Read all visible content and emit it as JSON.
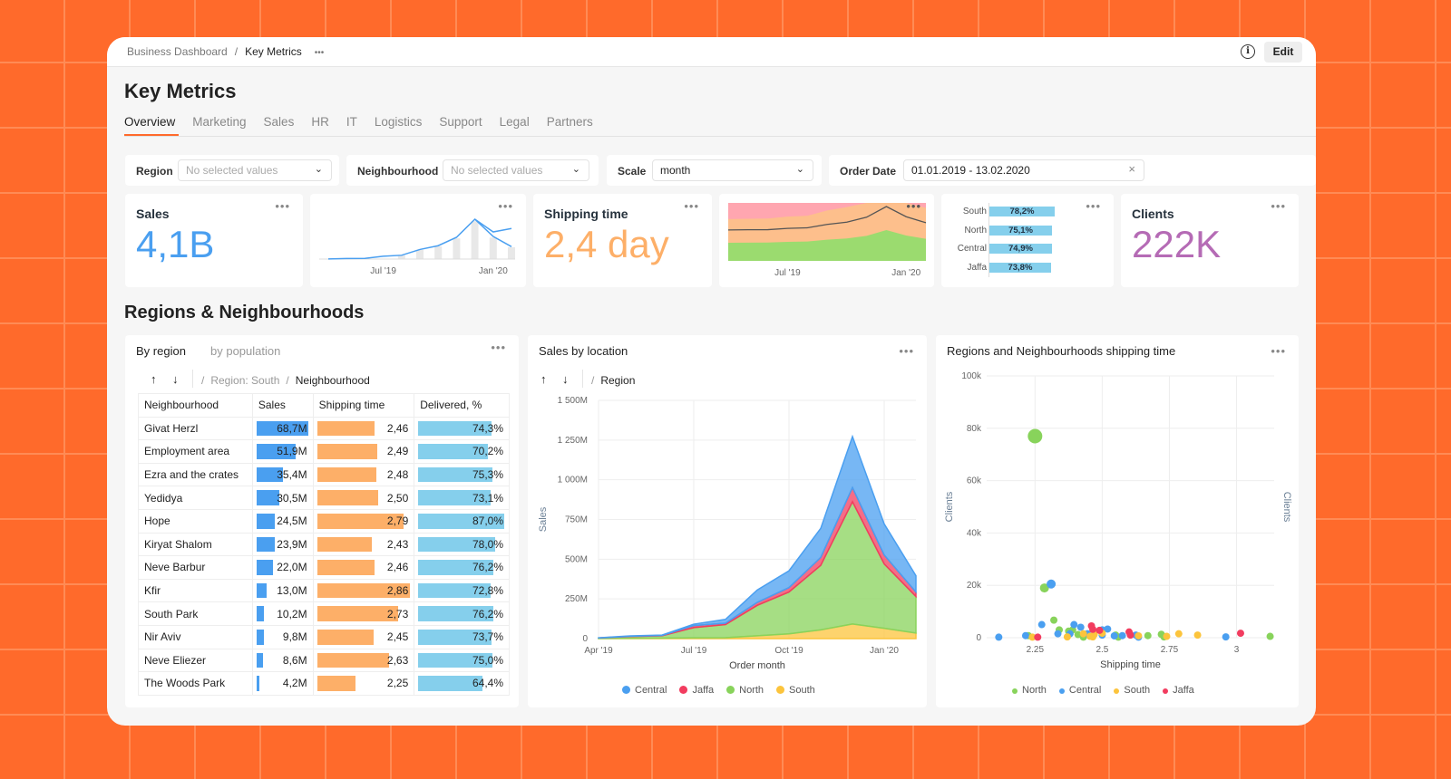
{
  "breadcrumb": {
    "parent": "Business Dashboard",
    "separator": "/",
    "current": "Key Metrics",
    "more": "•••"
  },
  "header": {
    "info_icon": "info-icon",
    "edit_label": "Edit"
  },
  "page_title": "Key Metrics",
  "tabs": [
    {
      "label": "Overview",
      "active": true
    },
    {
      "label": "Marketing"
    },
    {
      "label": "Sales"
    },
    {
      "label": "HR"
    },
    {
      "label": "IT"
    },
    {
      "label": "Logistics"
    },
    {
      "label": "Support"
    },
    {
      "label": "Legal"
    },
    {
      "label": "Partners"
    }
  ],
  "filters": {
    "region": {
      "label": "Region",
      "placeholder": "No selected values"
    },
    "neighbourhood": {
      "label": "Neighbourhood",
      "placeholder": "No selected values"
    },
    "scale": {
      "label": "Scale",
      "value": "month"
    },
    "order_date": {
      "label": "Order Date",
      "value": "01.01.2019 - 13.02.2020"
    }
  },
  "colors": {
    "accent": "#ff6a2b",
    "sales": "#4a9ff0",
    "shipping": "#fdaf68",
    "delivered": "#85cfec",
    "clients": "#b56bb5",
    "central": "#4a9ff0",
    "jaffa": "#f23c5f",
    "north": "#88d35b",
    "south": "#fcc43c"
  },
  "kpis": {
    "sales": {
      "title": "Sales",
      "value": "4,1B"
    },
    "sales_spark": {
      "x_ticks": [
        "Jul '19",
        "Jan '20"
      ]
    },
    "shipping": {
      "title": "Shipping time",
      "value": "2,4 day"
    },
    "shipping_mini": {
      "x_ticks": [
        "Jul '19",
        "Jan '20"
      ]
    },
    "delivered": {
      "rows": [
        {
          "label": "South",
          "value": "78,2%",
          "pct": 78.2
        },
        {
          "label": "North",
          "value": "75,1%",
          "pct": 75.1
        },
        {
          "label": "Central",
          "value": "74,9%",
          "pct": 74.9
        },
        {
          "label": "Jaffa",
          "value": "73,8%",
          "pct": 73.8
        }
      ]
    },
    "clients": {
      "title": "Clients",
      "value": "222K"
    },
    "more": "•••"
  },
  "section_title": "Regions & Neighbourhoods",
  "table_panel": {
    "tabs": [
      "By region",
      "by population"
    ],
    "up": "↑",
    "down": "↓",
    "path": [
      "/",
      "Region: South",
      "/",
      "Neighbourhood"
    ],
    "columns": [
      "Neighbourhood",
      "Sales",
      "Shipping time",
      "Delivered, %"
    ],
    "rows": [
      [
        "Givat Herzl",
        "68,7M",
        68.7,
        "2,46",
        2.46,
        "74,3%",
        74.3
      ],
      [
        "Employment area",
        "51,9M",
        51.9,
        "2,49",
        2.49,
        "70,2%",
        70.2
      ],
      [
        "Ezra and the crates",
        "35,4M",
        35.4,
        "2,48",
        2.48,
        "75,3%",
        75.3
      ],
      [
        "Yedidya",
        "30,5M",
        30.5,
        "2,50",
        2.5,
        "73,1%",
        73.1
      ],
      [
        "Hope",
        "24,5M",
        24.5,
        "2,79",
        2.79,
        "87,0%",
        87.0
      ],
      [
        "Kiryat Shalom",
        "23,9M",
        23.9,
        "2,43",
        2.43,
        "78,0%",
        78.0
      ],
      [
        "Neve Barbur",
        "22,0M",
        22.0,
        "2,46",
        2.46,
        "76,2%",
        76.2
      ],
      [
        "Kfir",
        "13,0M",
        13.0,
        "2,86",
        2.86,
        "72,8%",
        72.8
      ],
      [
        "South Park",
        "10,2M",
        10.2,
        "2,73",
        2.73,
        "76,2%",
        76.2
      ],
      [
        "Nir Aviv",
        "9,8M",
        9.8,
        "2,45",
        2.45,
        "73,7%",
        73.7
      ],
      [
        "Neve Eliezer",
        "8,6M",
        8.6,
        "2,63",
        2.63,
        "75,0%",
        75.0
      ],
      [
        "The Woods Park",
        "4,2M",
        4.2,
        "2,25",
        2.25,
        "64,4%",
        64.4
      ]
    ]
  },
  "chart_data": [
    {
      "type": "area",
      "stacked": true,
      "title": "Sales by location",
      "breadcrumb": [
        "/",
        "Region"
      ],
      "xlabel": "Order month",
      "ylabel": "Sales",
      "categories": [
        "Apr '19",
        "May '19",
        "Jun '19",
        "Jul '19",
        "Aug '19",
        "Sep '19",
        "Oct '19",
        "Nov '19",
        "Dec '19",
        "Jan '20",
        "Feb '20"
      ],
      "x_ticks": [
        "Apr '19",
        "Jul '19",
        "Oct '19",
        "Jan '20"
      ],
      "y_ticks": [
        "0",
        "250M",
        "500M",
        "750M",
        "1 000M",
        "1 250M",
        "1 500M"
      ],
      "ylim": [
        0,
        1500
      ],
      "grid": true,
      "legend": "bottom",
      "series": [
        {
          "name": "South",
          "values": [
            1,
            2,
            3,
            5,
            6,
            18,
            30,
            55,
            92,
            65,
            35
          ]
        },
        {
          "name": "North",
          "values": [
            3,
            11,
            15,
            64,
            82,
            191,
            263,
            406,
            770,
            405,
            230
          ]
        },
        {
          "name": "Jaffa",
          "values": [
            0,
            2,
            2,
            13,
            9,
            19,
            28,
            50,
            89,
            56,
            28
          ]
        },
        {
          "name": "Central",
          "values": [
            1,
            2,
            2,
            9,
            24,
            78,
            106,
            183,
            321,
            196,
            103
          ]
        }
      ],
      "legend_order": [
        "Central",
        "Jaffa",
        "North",
        "South"
      ]
    },
    {
      "type": "scatter",
      "title": "Regions and Neighbourhoods shipping time",
      "xlabel": "Shipping time",
      "ylabel": "Clients",
      "ylabel_right": "Clients",
      "x_ticks": [
        "2.25",
        "2.5",
        "2.75",
        "3"
      ],
      "y_ticks": [
        "0",
        "20k",
        "40k",
        "60k",
        "80k",
        "100k"
      ],
      "xlim": [
        2.07,
        3.14
      ],
      "ylim": [
        0,
        100
      ],
      "grid": true,
      "legend": "bottom",
      "legend_order": [
        "North",
        "Central",
        "South",
        "Jaffa"
      ],
      "series": [
        {
          "name": "North",
          "points": [
            [
              2.25,
              77
            ],
            [
              2.285,
              19
            ],
            [
              2.32,
              6.7
            ],
            [
              2.34,
              3
            ],
            [
              2.225,
              0.8
            ],
            [
              2.375,
              2.5
            ],
            [
              2.39,
              3
            ],
            [
              2.41,
              1.2
            ],
            [
              2.43,
              0.2
            ],
            [
              2.55,
              1
            ],
            [
              2.56,
              0.2
            ],
            [
              2.67,
              0.8
            ],
            [
              2.72,
              1.3
            ],
            [
              2.73,
              0.3
            ],
            [
              3.125,
              0.5
            ]
          ]
        },
        {
          "name": "Central",
          "points": [
            [
              2.115,
              0.2
            ],
            [
              2.215,
              0.8
            ],
            [
              2.275,
              5
            ],
            [
              2.31,
              20.5
            ],
            [
              2.335,
              1.5
            ],
            [
              2.38,
              1.5
            ],
            [
              2.395,
              5
            ],
            [
              2.42,
              4
            ],
            [
              2.445,
              1.5
            ],
            [
              2.5,
              3
            ],
            [
              2.5,
              1
            ],
            [
              2.52,
              3.3
            ],
            [
              2.545,
              0.7
            ],
            [
              2.575,
              0.8
            ],
            [
              2.625,
              1
            ],
            [
              2.635,
              0.2
            ],
            [
              2.96,
              0.3
            ]
          ]
        },
        {
          "name": "South",
          "points": [
            [
              2.24,
              0.2
            ],
            [
              2.37,
              0.3
            ],
            [
              2.43,
              1.5
            ],
            [
              2.455,
              0.5
            ],
            [
              2.465,
              0.3
            ],
            [
              2.47,
              1.2
            ],
            [
              2.5,
              1.7
            ],
            [
              2.635,
              0.7
            ],
            [
              2.74,
              0.5
            ],
            [
              2.785,
              1.5
            ],
            [
              2.855,
              1
            ]
          ]
        },
        {
          "name": "Jaffa",
          "points": [
            [
              2.26,
              0.2
            ],
            [
              2.46,
              4.5
            ],
            [
              2.465,
              3.2
            ],
            [
              2.49,
              2.8
            ],
            [
              2.6,
              2.2
            ],
            [
              2.605,
              1
            ],
            [
              3.015,
              1.7
            ]
          ]
        }
      ]
    }
  ]
}
